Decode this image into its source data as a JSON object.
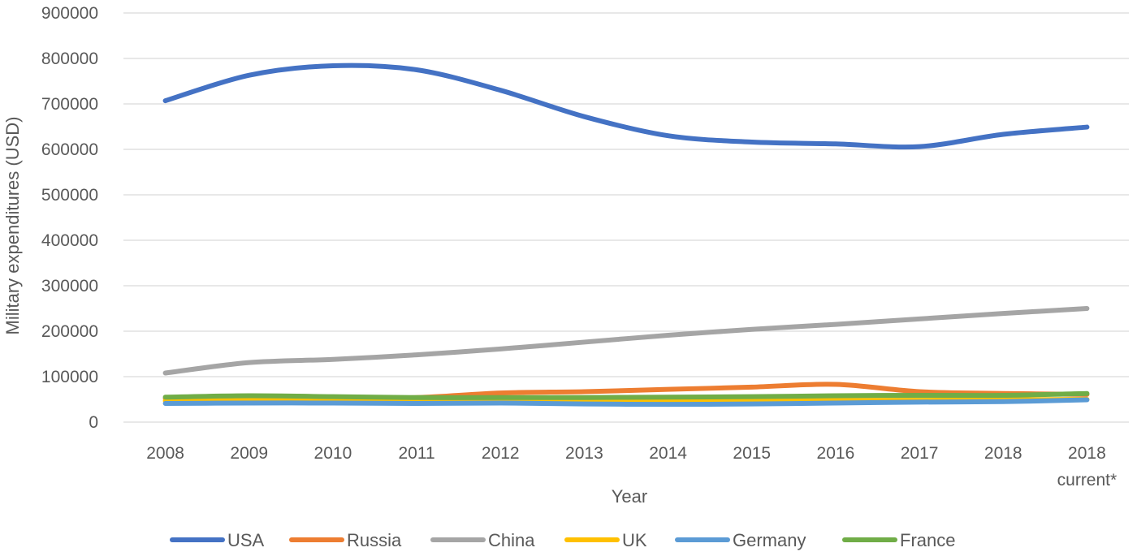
{
  "chart_data": {
    "type": "line",
    "title": "",
    "xlabel": "Year",
    "ylabel": "Military expenditures (USD)",
    "categories": [
      "2008",
      "2009",
      "2010",
      "2011",
      "2012",
      "2013",
      "2014",
      "2015",
      "2016",
      "2017",
      "2018",
      "2018 current*"
    ],
    "ylim": [
      0,
      900000
    ],
    "yticks": [
      0,
      100000,
      200000,
      300000,
      400000,
      500000,
      600000,
      700000,
      800000,
      900000
    ],
    "grid": true,
    "legend_position": "bottom",
    "series": [
      {
        "name": "USA",
        "color": "#4472C4",
        "values": [
          707000,
          763000,
          784000,
          775000,
          730000,
          672000,
          630000,
          616000,
          612000,
          606000,
          633000,
          649000
        ]
      },
      {
        "name": "Russia",
        "color": "#ED7D31",
        "values": [
          52000,
          52000,
          53000,
          54000,
          64000,
          67000,
          72000,
          77000,
          83000,
          67000,
          63000,
          61000
        ]
      },
      {
        "name": "China",
        "color": "#A5A5A5",
        "values": [
          108000,
          131000,
          138000,
          148000,
          161000,
          176000,
          191000,
          204000,
          215000,
          227000,
          239000,
          250000
        ]
      },
      {
        "name": "UK",
        "color": "#FFC000",
        "values": [
          47000,
          48000,
          48000,
          47000,
          46000,
          47000,
          46000,
          47000,
          48000,
          48000,
          49000,
          50000
        ]
      },
      {
        "name": "Germany",
        "color": "#5B9BD5",
        "values": [
          41000,
          42000,
          42000,
          41000,
          42000,
          40000,
          39000,
          40000,
          42000,
          44000,
          45000,
          49000
        ]
      },
      {
        "name": "France",
        "color": "#70AD47",
        "values": [
          55000,
          58000,
          56000,
          54000,
          54000,
          54000,
          55000,
          56000,
          58000,
          59000,
          59000,
          63000
        ]
      }
    ]
  }
}
